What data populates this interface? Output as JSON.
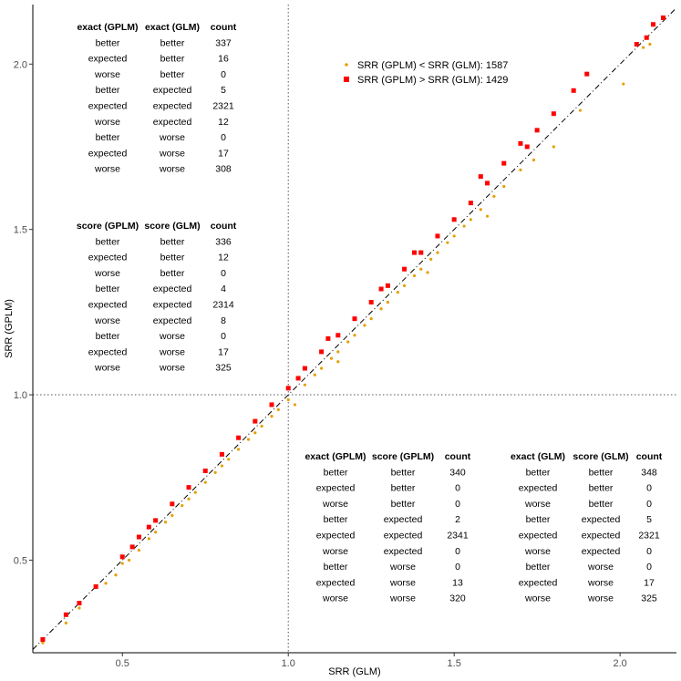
{
  "chart_data": {
    "type": "scatter",
    "xlabel": "SRR (GLM)",
    "ylabel": "SRR (GPLM)",
    "xlim": [
      0.23,
      2.17
    ],
    "ylim": [
      0.22,
      2.18
    ],
    "x_ticks": [
      {
        "value": 0.5,
        "label": "0.5"
      },
      {
        "value": 1.0,
        "label": "1.0"
      },
      {
        "value": 1.5,
        "label": "1.5"
      },
      {
        "value": 2.0,
        "label": "2.0"
      }
    ],
    "y_ticks": [
      {
        "value": 0.5,
        "label": "0.5"
      },
      {
        "value": 1.0,
        "label": "1.0"
      },
      {
        "value": 1.5,
        "label": "1.5"
      },
      {
        "value": 2.0,
        "label": "2.0"
      }
    ],
    "grid": false,
    "reference_lines": [
      {
        "type": "vertical",
        "value": 1.0,
        "style": "dotted"
      },
      {
        "type": "horizontal",
        "value": 1.0,
        "style": "dotted"
      },
      {
        "type": "identity",
        "style": "dashdot"
      }
    ],
    "legend_position": "top-center",
    "series": [
      {
        "name": "SRR (GPLM) < SRR (GLM): 1587",
        "color": "#e69f00",
        "marker": "circle",
        "points": [
          [
            0.26,
            0.25
          ],
          [
            0.33,
            0.31
          ],
          [
            0.37,
            0.355
          ],
          [
            0.45,
            0.43
          ],
          [
            0.48,
            0.455
          ],
          [
            0.5,
            0.49
          ],
          [
            0.52,
            0.5
          ],
          [
            0.55,
            0.53
          ],
          [
            0.58,
            0.565
          ],
          [
            0.6,
            0.585
          ],
          [
            0.63,
            0.615
          ],
          [
            0.65,
            0.635
          ],
          [
            0.68,
            0.665
          ],
          [
            0.7,
            0.685
          ],
          [
            0.72,
            0.705
          ],
          [
            0.75,
            0.735
          ],
          [
            0.78,
            0.765
          ],
          [
            0.8,
            0.785
          ],
          [
            0.82,
            0.805
          ],
          [
            0.85,
            0.835
          ],
          [
            0.88,
            0.865
          ],
          [
            0.9,
            0.885
          ],
          [
            0.92,
            0.905
          ],
          [
            0.95,
            0.935
          ],
          [
            0.97,
            0.955
          ],
          [
            1.0,
            0.985
          ],
          [
            1.02,
            0.97
          ],
          [
            1.05,
            1.03
          ],
          [
            1.08,
            1.06
          ],
          [
            1.1,
            1.08
          ],
          [
            1.13,
            1.11
          ],
          [
            1.15,
            1.13
          ],
          [
            1.18,
            1.16
          ],
          [
            1.2,
            1.18
          ],
          [
            1.23,
            1.21
          ],
          [
            1.25,
            1.23
          ],
          [
            1.28,
            1.26
          ],
          [
            1.3,
            1.28
          ],
          [
            1.33,
            1.31
          ],
          [
            1.35,
            1.33
          ],
          [
            1.38,
            1.36
          ],
          [
            1.4,
            1.38
          ],
          [
            1.43,
            1.41
          ],
          [
            1.45,
            1.43
          ],
          [
            1.48,
            1.46
          ],
          [
            1.5,
            1.48
          ],
          [
            1.53,
            1.51
          ],
          [
            1.55,
            1.53
          ],
          [
            1.58,
            1.56
          ],
          [
            1.62,
            1.6
          ],
          [
            1.65,
            1.63
          ],
          [
            1.7,
            1.68
          ],
          [
            1.74,
            1.71
          ],
          [
            1.8,
            1.75
          ],
          [
            1.88,
            1.86
          ],
          [
            2.01,
            1.94
          ],
          [
            2.07,
            2.05
          ],
          [
            2.09,
            2.06
          ],
          [
            1.15,
            1.1
          ],
          [
            1.42,
            1.37
          ],
          [
            1.6,
            1.54
          ]
        ]
      },
      {
        "name": "SRR (GPLM) > SRR (GLM): 1429",
        "color": "#ff0000",
        "marker": "square",
        "points": [
          [
            0.26,
            0.26
          ],
          [
            0.33,
            0.335
          ],
          [
            0.37,
            0.37
          ],
          [
            0.42,
            0.42
          ],
          [
            0.5,
            0.51
          ],
          [
            0.53,
            0.54
          ],
          [
            0.55,
            0.57
          ],
          [
            0.6,
            0.62
          ],
          [
            0.65,
            0.67
          ],
          [
            0.7,
            0.72
          ],
          [
            0.75,
            0.77
          ],
          [
            0.8,
            0.82
          ],
          [
            0.85,
            0.87
          ],
          [
            0.9,
            0.92
          ],
          [
            0.95,
            0.97
          ],
          [
            1.0,
            1.02
          ],
          [
            1.03,
            1.05
          ],
          [
            1.05,
            1.08
          ],
          [
            1.1,
            1.13
          ],
          [
            1.15,
            1.18
          ],
          [
            1.2,
            1.23
          ],
          [
            1.25,
            1.28
          ],
          [
            1.3,
            1.33
          ],
          [
            1.35,
            1.38
          ],
          [
            1.4,
            1.43
          ],
          [
            1.45,
            1.48
          ],
          [
            1.5,
            1.53
          ],
          [
            1.55,
            1.58
          ],
          [
            1.6,
            1.64
          ],
          [
            1.65,
            1.7
          ],
          [
            1.7,
            1.76
          ],
          [
            1.75,
            1.8
          ],
          [
            1.8,
            1.85
          ],
          [
            1.86,
            1.92
          ],
          [
            1.9,
            1.97
          ],
          [
            2.05,
            2.06
          ],
          [
            2.08,
            2.08
          ],
          [
            2.1,
            2.12
          ],
          [
            2.13,
            2.14
          ],
          [
            0.58,
            0.6
          ],
          [
            1.12,
            1.17
          ],
          [
            1.28,
            1.32
          ],
          [
            1.38,
            1.43
          ],
          [
            1.58,
            1.66
          ],
          [
            1.72,
            1.75
          ]
        ]
      }
    ],
    "annotation_tables": [
      {
        "anchor": "top-left",
        "headers": [
          "exact (GPLM)",
          "exact (GLM)",
          "count"
        ],
        "rows": [
          [
            "better",
            "better",
            "337"
          ],
          [
            "expected",
            "better",
            "16"
          ],
          [
            "worse",
            "better",
            "0"
          ],
          [
            "better",
            "expected",
            "5"
          ],
          [
            "expected",
            "expected",
            "2321"
          ],
          [
            "worse",
            "expected",
            "12"
          ],
          [
            "better",
            "worse",
            "0"
          ],
          [
            "expected",
            "worse",
            "17"
          ],
          [
            "worse",
            "worse",
            "308"
          ]
        ]
      },
      {
        "anchor": "middle-left",
        "headers": [
          "score (GPLM)",
          "score (GLM)",
          "count"
        ],
        "rows": [
          [
            "better",
            "better",
            "336"
          ],
          [
            "expected",
            "better",
            "12"
          ],
          [
            "worse",
            "better",
            "0"
          ],
          [
            "better",
            "expected",
            "4"
          ],
          [
            "expected",
            "expected",
            "2314"
          ],
          [
            "worse",
            "expected",
            "8"
          ],
          [
            "better",
            "worse",
            "0"
          ],
          [
            "expected",
            "worse",
            "17"
          ],
          [
            "worse",
            "worse",
            "325"
          ]
        ]
      },
      {
        "anchor": "bottom-center",
        "headers": [
          "exact (GPLM)",
          "score (GPLM)",
          "count"
        ],
        "rows": [
          [
            "better",
            "better",
            "340"
          ],
          [
            "expected",
            "better",
            "0"
          ],
          [
            "worse",
            "better",
            "0"
          ],
          [
            "better",
            "expected",
            "2"
          ],
          [
            "expected",
            "expected",
            "2341"
          ],
          [
            "worse",
            "expected",
            "0"
          ],
          [
            "better",
            "worse",
            "0"
          ],
          [
            "expected",
            "worse",
            "13"
          ],
          [
            "worse",
            "worse",
            "320"
          ]
        ]
      },
      {
        "anchor": "bottom-right",
        "headers": [
          "exact (GLM)",
          "score (GLM)",
          "count"
        ],
        "rows": [
          [
            "better",
            "better",
            "348"
          ],
          [
            "expected",
            "better",
            "0"
          ],
          [
            "worse",
            "better",
            "0"
          ],
          [
            "better",
            "expected",
            "5"
          ],
          [
            "expected",
            "expected",
            "2321"
          ],
          [
            "worse",
            "expected",
            "0"
          ],
          [
            "better",
            "worse",
            "0"
          ],
          [
            "expected",
            "worse",
            "17"
          ],
          [
            "worse",
            "worse",
            "325"
          ]
        ]
      }
    ]
  }
}
